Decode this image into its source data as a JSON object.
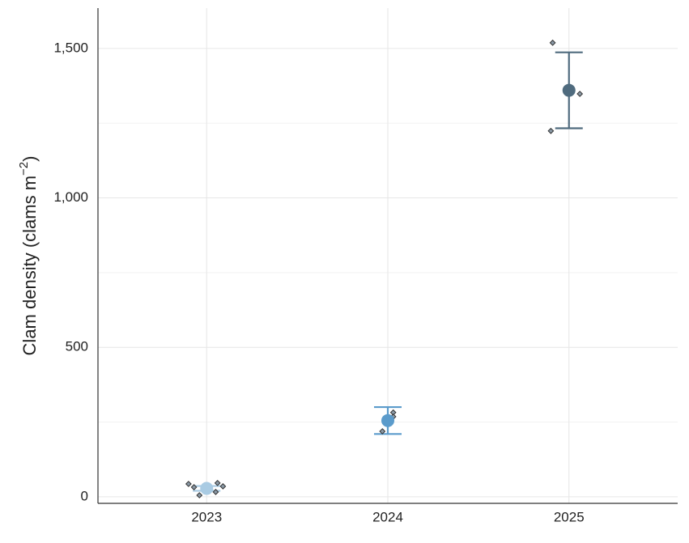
{
  "chart_data": {
    "type": "scatter",
    "y_label": "Clam density (clams m",
    "y_label_sup": "−2",
    "y_label_end": ")",
    "xlim": [
      2022.4,
      2025.6
    ],
    "xticks": [
      2023,
      2024,
      2025
    ],
    "ylim": [
      -22,
      1635
    ],
    "yticks": [
      0,
      500,
      {
        "value": 1000,
        "label": "1,000"
      },
      {
        "value": 1500,
        "label": "1,500"
      }
    ],
    "minor_yticks": [
      250,
      750,
      1250
    ],
    "grid": true,
    "point_color": "#8a99a6",
    "groups": [
      {
        "x": 2023,
        "color": "#a9cbe3",
        "mean": 28,
        "error": 8,
        "points_x": [
          2022.9,
          2022.93,
          2022.96,
          2023.05,
          2023.06,
          2023.09
        ],
        "points": [
          43,
          32,
          5,
          16,
          46,
          35
        ]
      },
      {
        "x": 2024,
        "color": "#5b9bcb",
        "mean": 255,
        "error": 45,
        "points_x": [
          2023.97,
          2024.03,
          2024.03
        ],
        "points": [
          219,
          282,
          268
        ]
      },
      {
        "x": 2025,
        "color": "#4f6b7e",
        "mean": 1360,
        "error": 127,
        "points_x": [
          2024.91,
          2024.9,
          2025.06
        ],
        "points": [
          1519,
          1224,
          1348
        ]
      }
    ]
  }
}
